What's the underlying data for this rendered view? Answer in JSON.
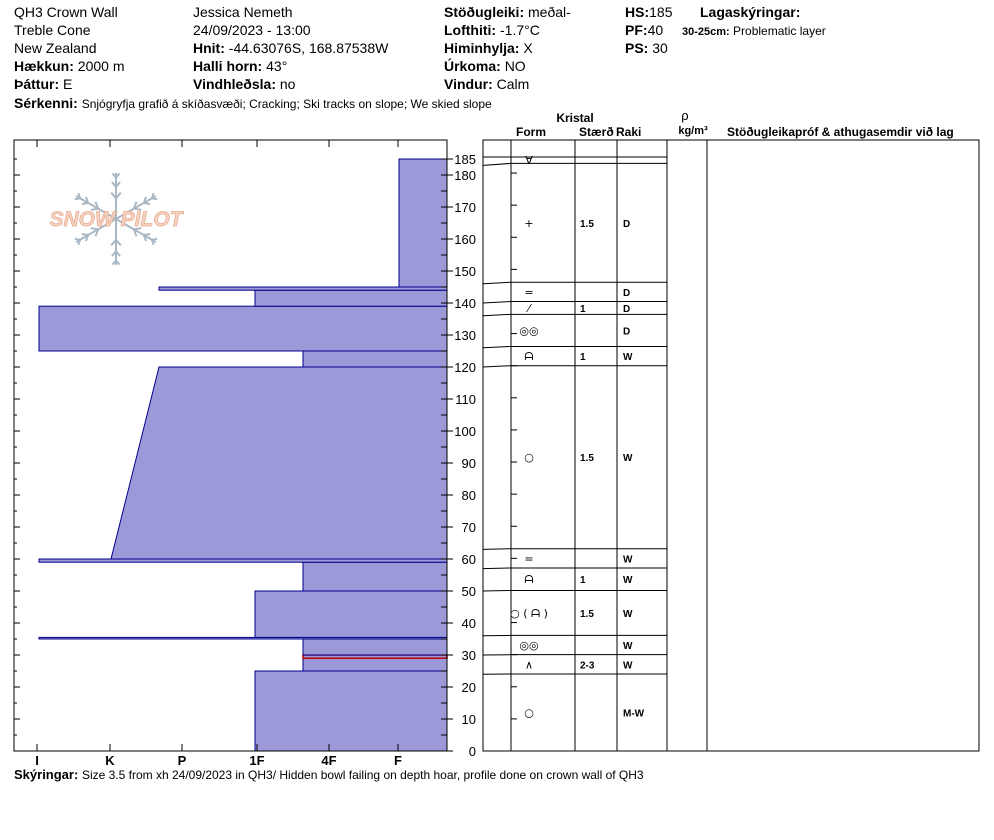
{
  "header": {
    "location": "QH3 Crown Wall",
    "area": "Treble Cone",
    "country": "New Zealand",
    "elevation_label": "Hækkun:",
    "elevation": "2000 m",
    "aspect_label": "Þáttur:",
    "aspect": "E",
    "observer": "Jessica Nemeth",
    "datetime": "24/09/2023 - 13:00",
    "coords_label": "Hnit:",
    "coords": "-44.63076S, 168.87538W",
    "slope_label": "Halli horn:",
    "slope": "43°",
    "wind_loading_label": "Vindhleðsla:",
    "wind_loading": "no",
    "stability_label": "Stöðugleiki:",
    "stability": "meðal-",
    "air_temp_label": "Lofthiti:",
    "air_temp": "-1.7°C",
    "sky_label": "Himinhylja:",
    "sky": "X",
    "precip_label": "Úrkoma:",
    "precip": "NO",
    "wind_label": "Vindur:",
    "wind": "Calm",
    "hs_label": "HS:",
    "hs": "185",
    "pf_label": "PF:",
    "pf": "40",
    "ps_label": "PS:",
    "ps": "30",
    "layer_notes_label": "Lagaskýringar:",
    "layer_note_range": "30-25cm:",
    "layer_note_text": "Problematic layer",
    "features_label": "Sérkenni:",
    "features": "Snjógryfja grafið á skíðasvæði;  Cracking;  Ski tracks on slope;  We skied slope"
  },
  "logo_text": "SNOW PILOT",
  "columns": {
    "crystal": "Kristal",
    "form": "Form",
    "size": "Stærð",
    "moisture": "Raki",
    "density_symbol": "ρ",
    "density_unit": "kg/m³",
    "tests": "Stöðugleikapróf & athugasemdir við lag"
  },
  "footer": {
    "label": "Skýringar:",
    "text": "Size 3.5 from xh 24/09/2023 in QH3/ Hidden bowl failing on depth hoar, profile done on crown wall of QH3"
  },
  "colors": {
    "fill": "#9b99d8",
    "stroke": "#00008b",
    "problem_layer": "#c00000"
  },
  "chart_data": {
    "type": "snow_profile",
    "total_depth_cm": 185,
    "y_ticks": [
      0,
      10,
      20,
      30,
      40,
      50,
      60,
      70,
      80,
      90,
      100,
      110,
      120,
      130,
      140,
      150,
      160,
      170,
      180,
      185
    ],
    "hardness_ticks": [
      "I",
      "K",
      "P",
      "1F",
      "4F",
      "F"
    ],
    "hardness_layers": [
      {
        "bottom": 0,
        "top": 25,
        "hardness": "1F"
      },
      {
        "bottom": 25,
        "top": 29,
        "hardness": "4F"
      },
      {
        "bottom": 29,
        "top": 30,
        "hardness": "4F",
        "problematic": true
      },
      {
        "bottom": 30,
        "top": 35,
        "hardness": "4F"
      },
      {
        "bottom": 35,
        "top": 35.5,
        "hardness": "I"
      },
      {
        "bottom": 35.5,
        "top": 50,
        "hardness": "1F"
      },
      {
        "bottom": 50,
        "top": 59,
        "hardness": "4F"
      },
      {
        "bottom": 59,
        "top": 60,
        "hardness": "I"
      },
      {
        "bottom": 60,
        "top": 120,
        "hardness_bottom": "K",
        "hardness_top": "P"
      },
      {
        "bottom": 120,
        "top": 125,
        "hardness": "4F"
      },
      {
        "bottom": 125,
        "top": 139,
        "hardness": "I"
      },
      {
        "bottom": 139,
        "top": 144,
        "hardness": "1F"
      },
      {
        "bottom": 144,
        "top": 145,
        "hardness": "P"
      },
      {
        "bottom": 145,
        "top": 185,
        "hardness": "F"
      }
    ],
    "strata": [
      {
        "top": 185,
        "bottom": 183,
        "form": "∀",
        "size": "",
        "moisture": ""
      },
      {
        "top": 183,
        "bottom": 146,
        "form": "+",
        "size": "1.5",
        "moisture": "D"
      },
      {
        "top": 146,
        "bottom": 140,
        "form": "=",
        "size": "",
        "moisture": "D"
      },
      {
        "top": 140,
        "bottom": 136,
        "form": "⁄",
        "size": "1",
        "moisture": "D"
      },
      {
        "top": 136,
        "bottom": 126,
        "form": "◎◎",
        "size": "",
        "moisture": "D"
      },
      {
        "top": 126,
        "bottom": 120,
        "form": "ᗩ",
        "size": "1",
        "moisture": "W"
      },
      {
        "top": 120,
        "bottom": 63,
        "form": "○",
        "size": "1.5",
        "moisture": "W"
      },
      {
        "top": 63,
        "bottom": 57,
        "form": "=",
        "size": "",
        "moisture": "W"
      },
      {
        "top": 57,
        "bottom": 50,
        "form": "ᗩ",
        "size": "1",
        "moisture": "W"
      },
      {
        "top": 50,
        "bottom": 36,
        "form": "○ ( ᗩ )",
        "size": "1.5",
        "moisture": "W"
      },
      {
        "top": 36,
        "bottom": 30,
        "form": "◎◎",
        "size": "",
        "moisture": "W"
      },
      {
        "top": 30,
        "bottom": 24,
        "form": "∧",
        "size": "2-3",
        "moisture": "W"
      },
      {
        "top": 24,
        "bottom": 0,
        "form": "○",
        "size": "",
        "moisture": "M-W"
      }
    ]
  }
}
